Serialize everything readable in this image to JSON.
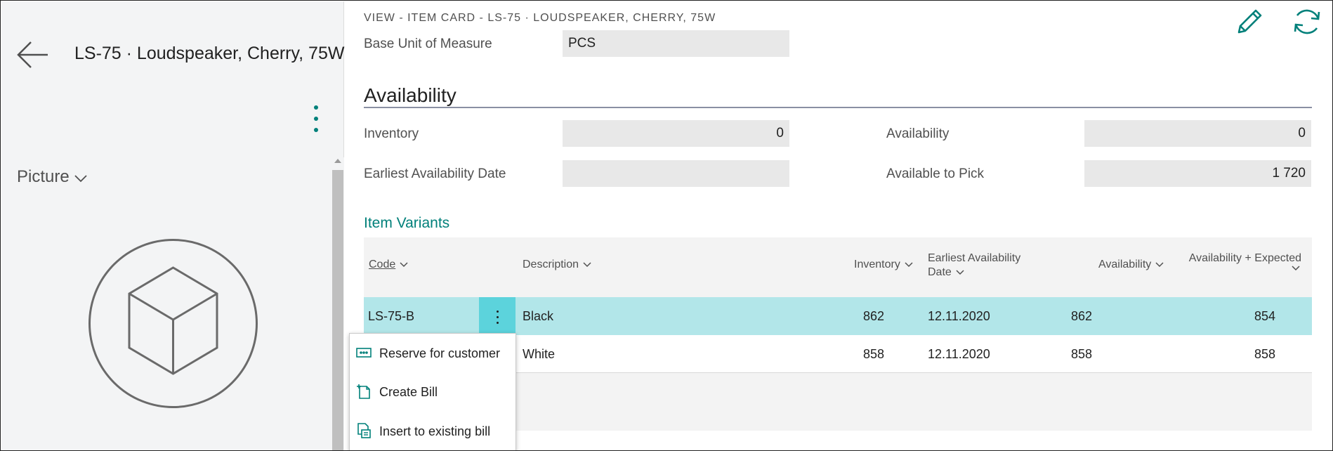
{
  "header": {
    "caption": "VIEW - ITEM CARD - LS-75 · LOUDSPEAKER, CHERRY, 75W",
    "page_title": "LS-75 · Loudspeaker, Cherry, 75W"
  },
  "icons": {
    "back": "arrow-left-icon",
    "edit": "pencil-icon",
    "refresh": "refresh-icon",
    "more": "vertical-ellipsis-icon",
    "picture_placeholder": "cube-icon"
  },
  "factbox": {
    "picture_label": "Picture"
  },
  "fields": {
    "base_unit_label": "Base Unit of Measure",
    "base_unit_value": "PCS"
  },
  "availability": {
    "title": "Availability",
    "inventory_label": "Inventory",
    "inventory_value": "0",
    "availability_label": "Availability",
    "availability_value": "0",
    "earliest_label": "Earliest Availability Date",
    "earliest_value": "",
    "pick_label": "Available to Pick",
    "pick_value": "1 720"
  },
  "variants": {
    "title": "Item Variants",
    "columns": {
      "code": "Code",
      "description": "Description",
      "inventory": "Inventory",
      "earliest_line1": "Earliest Availability",
      "earliest_line2": "Date",
      "availability": "Availability",
      "avail_expected": "Availability + Expected"
    },
    "rows": [
      {
        "code": "LS-75-B",
        "description": "Black",
        "inventory": "862",
        "earliest": "12.11.2020",
        "availability": "862",
        "avail_expected": "854"
      },
      {
        "code": "",
        "description": "White",
        "inventory": "858",
        "earliest": "12.11.2020",
        "availability": "858",
        "avail_expected": "858"
      }
    ]
  },
  "context_menu": {
    "items": [
      {
        "label": "Reserve for customer",
        "icon": "reserve-icon"
      },
      {
        "label": "Create Bill",
        "icon": "create-bill-icon"
      },
      {
        "label": "Insert to existing bill",
        "icon": "insert-bill-icon"
      }
    ]
  },
  "colors": {
    "accent": "#00807a",
    "selected_row": "#b2e6e9",
    "row_menu_button": "#5cd3dc"
  }
}
